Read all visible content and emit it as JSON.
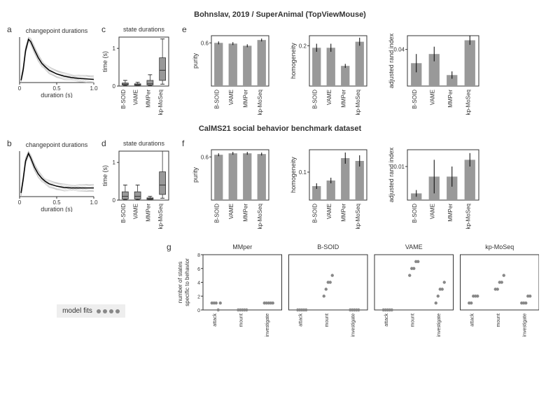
{
  "section1": {
    "title": "Bohnslav, 2019 / SuperAnimal (TopViewMouse)"
  },
  "section2": {
    "title": "CalMS21 social behavior benchmark dataset"
  },
  "changepoint": {
    "title": "changepoint durations",
    "xlabel": "duration (s)",
    "xlim": [
      0,
      1.0
    ],
    "xticks": [
      0,
      0.5,
      1.0
    ],
    "xtick_labels": [
      "0",
      "0.5",
      "1.0"
    ],
    "line_color": "#000",
    "trace_color": "#bbb",
    "trace_n": 12,
    "curve1": [
      [
        0.02,
        0.05
      ],
      [
        0.05,
        0.3
      ],
      [
        0.08,
        0.7
      ],
      [
        0.12,
        0.95
      ],
      [
        0.15,
        0.9
      ],
      [
        0.2,
        0.72
      ],
      [
        0.25,
        0.55
      ],
      [
        0.3,
        0.42
      ],
      [
        0.35,
        0.34
      ],
      [
        0.4,
        0.27
      ],
      [
        0.5,
        0.19
      ],
      [
        0.6,
        0.14
      ],
      [
        0.7,
        0.11
      ],
      [
        0.8,
        0.09
      ],
      [
        0.9,
        0.08
      ],
      [
        1.0,
        0.07
      ]
    ],
    "curve2": [
      [
        0.02,
        0.08
      ],
      [
        0.05,
        0.4
      ],
      [
        0.08,
        0.78
      ],
      [
        0.12,
        0.95
      ],
      [
        0.15,
        0.85
      ],
      [
        0.2,
        0.65
      ],
      [
        0.25,
        0.5
      ],
      [
        0.3,
        0.4
      ],
      [
        0.35,
        0.33
      ],
      [
        0.4,
        0.28
      ],
      [
        0.5,
        0.23
      ],
      [
        0.6,
        0.2
      ],
      [
        0.7,
        0.19
      ],
      [
        0.8,
        0.19
      ],
      [
        0.9,
        0.19
      ],
      [
        1.0,
        0.19
      ]
    ]
  },
  "state_durations": {
    "title": "state durations",
    "ylabel": "time (s)",
    "ylim": [
      0,
      1.3
    ],
    "yticks": [
      0,
      1
    ],
    "methods": [
      "B-SOID",
      "VAME",
      "MMPer",
      "kp-MoSeq"
    ],
    "boxes_c": [
      {
        "median": 0.05,
        "q1": 0.03,
        "q3": 0.08,
        "wlow": 0.01,
        "whigh": 0.15
      },
      {
        "median": 0.04,
        "q1": 0.02,
        "q3": 0.06,
        "wlow": 0.01,
        "whigh": 0.1
      },
      {
        "median": 0.06,
        "q1": 0.03,
        "q3": 0.15,
        "wlow": 0.01,
        "whigh": 0.3
      },
      {
        "median": 0.42,
        "q1": 0.15,
        "q3": 0.75,
        "wlow": 0.05,
        "whigh": 1.25
      }
    ],
    "boxes_d": [
      {
        "median": 0.1,
        "q1": 0.03,
        "q3": 0.22,
        "wlow": 0.01,
        "whigh": 0.4
      },
      {
        "median": 0.1,
        "q1": 0.03,
        "q3": 0.22,
        "wlow": 0.01,
        "whigh": 0.4
      },
      {
        "median": 0.04,
        "q1": 0.02,
        "q3": 0.06,
        "wlow": 0.01,
        "whigh": 0.1
      },
      {
        "median": 0.4,
        "q1": 0.15,
        "q3": 0.75,
        "wlow": 0.05,
        "whigh": 1.3
      }
    ],
    "box_color": "#999",
    "box_border": "#333"
  },
  "metrics": {
    "methods": [
      "B-SOID",
      "VAME",
      "MMPer",
      "kp-MoSeq"
    ],
    "bar_color": "#999",
    "border_color": "#333",
    "e": {
      "purity": {
        "label": "purity",
        "ylim": [
          0,
          0.7
        ],
        "yticks": [
          0.6
        ],
        "values": [
          0.6,
          0.59,
          0.56,
          0.64
        ],
        "err": [
          0.02,
          0.02,
          0.02,
          0.02
        ]
      },
      "homogeneity": {
        "label": "homogeneity",
        "ylim": [
          0,
          0.25
        ],
        "yticks": [
          0.2
        ],
        "values": [
          0.19,
          0.19,
          0.1,
          0.22
        ],
        "err": [
          0.02,
          0.02,
          0.01,
          0.02
        ]
      },
      "ari": {
        "label": "adjusted rand index",
        "ylim": [
          0,
          0.055
        ],
        "yticks": [
          0.04
        ],
        "values": [
          0.025,
          0.035,
          0.012,
          0.05
        ],
        "err": [
          0.01,
          0.008,
          0.004,
          0.005
        ]
      }
    },
    "f": {
      "purity": {
        "label": "purity",
        "ylim": [
          0,
          0.7
        ],
        "yticks": [
          0.6
        ],
        "values": [
          0.63,
          0.65,
          0.65,
          0.64
        ],
        "err": [
          0.02,
          0.02,
          0.02,
          0.02
        ]
      },
      "homogeneity": {
        "label": "homogeneity",
        "ylim": [
          0,
          0.18
        ],
        "yticks": [
          0.1
        ],
        "values": [
          0.05,
          0.07,
          0.15,
          0.14
        ],
        "err": [
          0.01,
          0.01,
          0.02,
          0.02
        ]
      },
      "ari": {
        "label": "adjusted rand index",
        "ylim": [
          0,
          0.015
        ],
        "yticks": [
          0.01
        ],
        "values": [
          0.002,
          0.007,
          0.007,
          0.012
        ],
        "err": [
          0.001,
          0.005,
          0.003,
          0.002
        ]
      }
    }
  },
  "g": {
    "ylabel": "number of states\nspecific to behavior",
    "ylim": [
      0,
      8
    ],
    "yticks": [
      0,
      2,
      4,
      6,
      8
    ],
    "categories": [
      "attack",
      "mount",
      "investigate"
    ],
    "titles": [
      "MMper",
      "B-SOID",
      "VAME",
      "kp-MoSeq"
    ],
    "dot_color": "#888",
    "panels": [
      {
        "data": [
          [
            1,
            1,
            1,
            0,
            1
          ],
          [
            0,
            0,
            0,
            0,
            0
          ],
          [
            1,
            1,
            1,
            1,
            1
          ]
        ]
      },
      {
        "data": [
          [
            0,
            0,
            0,
            0,
            0
          ],
          [
            2,
            3,
            4,
            4,
            5
          ],
          [
            0,
            0,
            0,
            0,
            0
          ]
        ]
      },
      {
        "data": [
          [
            0,
            0,
            0,
            0,
            0
          ],
          [
            5,
            6,
            6,
            7,
            7
          ],
          [
            1,
            2,
            3,
            3,
            4
          ]
        ]
      },
      {
        "data": [
          [
            1,
            1,
            2,
            2,
            2
          ],
          [
            3,
            3,
            4,
            4,
            5
          ],
          [
            1,
            1,
            1,
            2,
            2
          ]
        ]
      }
    ]
  },
  "legend": {
    "label": "model fits"
  },
  "labels": {
    "a": "a",
    "b": "b",
    "c": "c",
    "d": "d",
    "e": "e",
    "f": "f",
    "g": "g"
  }
}
